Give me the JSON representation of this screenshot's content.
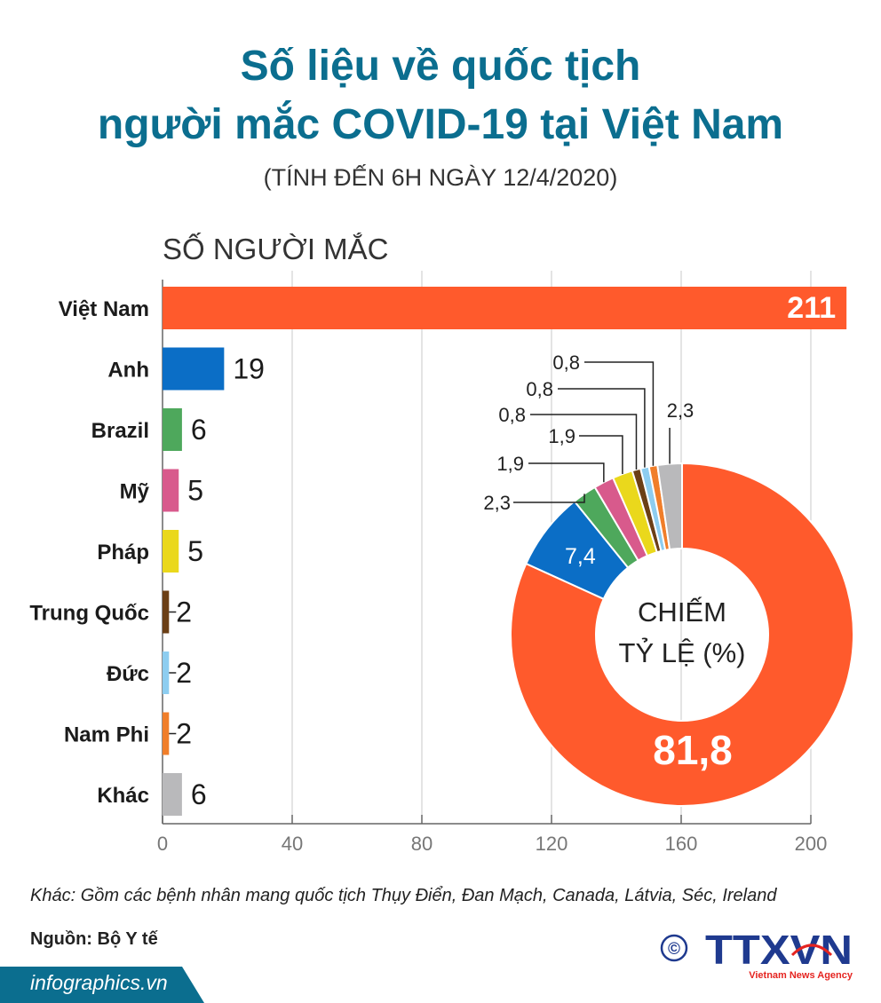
{
  "header": {
    "title_line1": "Số liệu về quốc tịch",
    "title_line2": "người mắc COVID-19 tại Việt Nam",
    "subtitle": "(TÍNH ĐẾN 6H NGÀY 12/4/2020)"
  },
  "chart_data": [
    {
      "type": "bar",
      "orientation": "horizontal",
      "title": "SỐ NGƯỜI MẮC",
      "categories": [
        "Việt Nam",
        "Anh",
        "Brazil",
        "Mỹ",
        "Pháp",
        "Trung Quốc",
        "Đức",
        "Nam Phi",
        "Khác"
      ],
      "values": [
        211,
        19,
        6,
        5,
        5,
        2,
        2,
        2,
        6
      ],
      "colors": [
        "#ff5a2c",
        "#0b6ec6",
        "#4ea85c",
        "#d85a8c",
        "#ead81c",
        "#6b3f16",
        "#8dcdf0",
        "#f07e2a",
        "#b9b9bb"
      ],
      "xlim": [
        0,
        200
      ],
      "xticks": [
        0,
        40,
        80,
        120,
        160,
        200
      ],
      "grid": true
    },
    {
      "type": "pie",
      "style": "donut",
      "center_label_line1": "CHIẾM",
      "center_label_line2": "TỶ LỆ (%)",
      "slices": [
        {
          "category": "Việt Nam",
          "value": 81.8,
          "label": "81,8",
          "color": "#ff5a2c"
        },
        {
          "category": "Anh",
          "value": 7.4,
          "label": "7,4",
          "color": "#0b6ec6"
        },
        {
          "category": "Brazil",
          "value": 2.3,
          "label": "2,3",
          "color": "#4ea85c"
        },
        {
          "category": "Mỹ",
          "value": 1.9,
          "label": "1,9",
          "color": "#d85a8c"
        },
        {
          "category": "Pháp",
          "value": 1.9,
          "label": "1,9",
          "color": "#ead81c"
        },
        {
          "category": "Trung Quốc",
          "value": 0.8,
          "label": "0,8",
          "color": "#6b3f16"
        },
        {
          "category": "Đức",
          "value": 0.8,
          "label": "0,8",
          "color": "#8dcdf0"
        },
        {
          "category": "Nam Phi",
          "value": 0.8,
          "label": "0,8",
          "color": "#f07e2a"
        },
        {
          "category": "Khác",
          "value": 2.3,
          "label": "2,3",
          "color": "#b9b9bb"
        }
      ]
    }
  ],
  "footer": {
    "note": "Khác: Gồm các bệnh nhân mang quốc tịch Thụy Điển, Đan Mạch, Canada, Látvia, Séc, Ireland",
    "source": "Nguồn: Bộ Y tế",
    "website": "infographics.vn",
    "logo_copyright": "©",
    "logo_text": "TTXVN",
    "logo_subtext": "Vietnam News Agency"
  },
  "colors": {
    "title": "#0b6e8f",
    "logo_blue": "#1f3a8f",
    "logo_red": "#e52420"
  }
}
